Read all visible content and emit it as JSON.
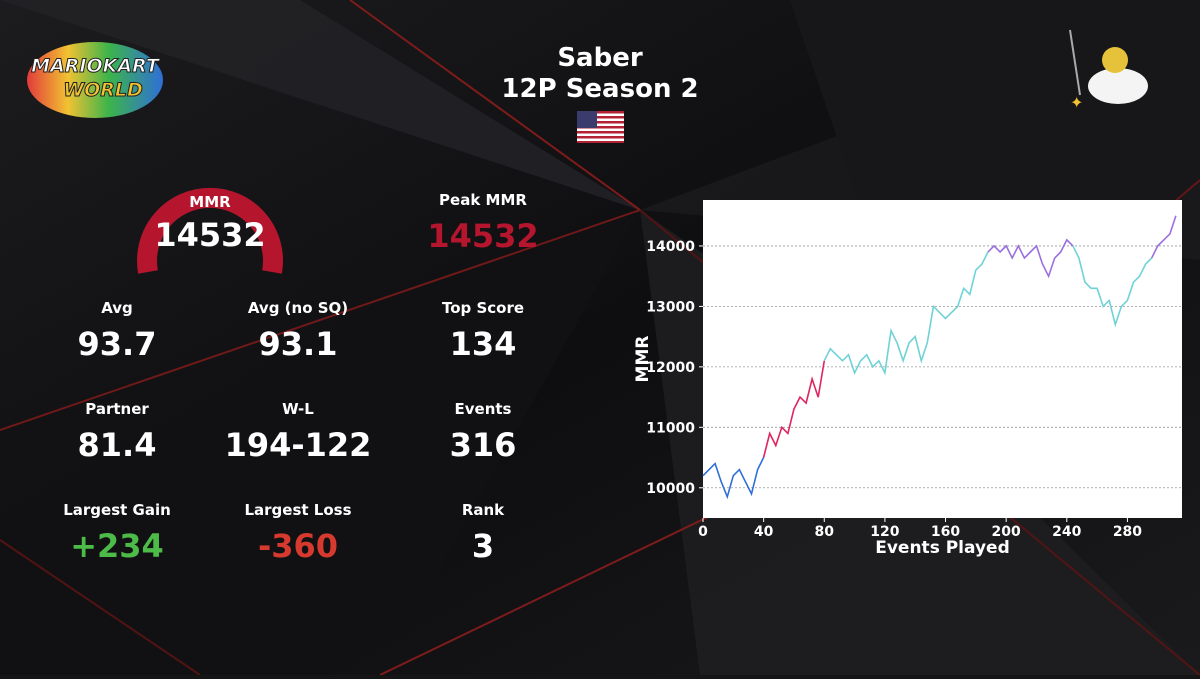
{
  "header": {
    "title": "Saber",
    "subtitle": "12P Season 2"
  },
  "logo": {
    "line1": "MARIOKART",
    "line2": "WORLD"
  },
  "gauge": {
    "label": "MMR",
    "value": "14532"
  },
  "stats": [
    {
      "label": "Peak MMR",
      "value": "14532",
      "color": "#b5162e"
    },
    {
      "label": "Avg",
      "value": "93.7"
    },
    {
      "label": "Avg (no SQ)",
      "value": "93.1"
    },
    {
      "label": "Top Score",
      "value": "134"
    },
    {
      "label": "Partner",
      "value": "81.4"
    },
    {
      "label": "W-L",
      "value": "194-122"
    },
    {
      "label": "Events",
      "value": "316"
    },
    {
      "label": "Largest Gain",
      "value": "+234",
      "color": "#4cbb47"
    },
    {
      "label": "Largest Loss",
      "value": "-360",
      "color": "#d63a2f"
    },
    {
      "label": "Rank",
      "value": "3"
    }
  ],
  "chart_data": {
    "type": "line",
    "xlabel": "Events Played",
    "ylabel": "MMR",
    "xlim": [
      0,
      316
    ],
    "ylim": [
      9500,
      14760
    ],
    "xticks": [
      0,
      40,
      80,
      120,
      160,
      200,
      240,
      280
    ],
    "yticks": [
      10000,
      11000,
      12000,
      13000,
      14000
    ],
    "grid": true,
    "x": [
      0,
      4,
      8,
      12,
      16,
      20,
      24,
      28,
      32,
      36,
      40,
      44,
      48,
      52,
      56,
      60,
      64,
      68,
      72,
      76,
      80,
      84,
      88,
      92,
      96,
      100,
      104,
      108,
      112,
      116,
      120,
      124,
      128,
      132,
      136,
      140,
      144,
      148,
      152,
      156,
      160,
      164,
      168,
      172,
      176,
      180,
      184,
      188,
      192,
      196,
      200,
      204,
      208,
      212,
      216,
      220,
      224,
      228,
      232,
      236,
      240,
      244,
      248,
      252,
      256,
      260,
      264,
      268,
      272,
      276,
      280,
      284,
      288,
      292,
      296,
      300,
      304,
      308,
      312
    ],
    "series": [
      {
        "color": "#2f6fd8",
        "values": [
          10200,
          10300,
          10400,
          10100,
          9850,
          10200,
          10300,
          10100,
          9900,
          10300,
          10500,
          null,
          null,
          null,
          null,
          null,
          null,
          null,
          null,
          null,
          null,
          null,
          null,
          null,
          null,
          null,
          null,
          null,
          null,
          null,
          null,
          null,
          null,
          null,
          null,
          null,
          null,
          null,
          null,
          null,
          null,
          null,
          null,
          null,
          null,
          null,
          null,
          null,
          null,
          null,
          null,
          null,
          null,
          null,
          null,
          null,
          null,
          null,
          null,
          null,
          null,
          null,
          null,
          null,
          null,
          null,
          null,
          null,
          null,
          null,
          null,
          null,
          null,
          null,
          null,
          null,
          null,
          null,
          null
        ]
      },
      {
        "color": "#e0245e",
        "values": [
          null,
          null,
          null,
          null,
          null,
          null,
          null,
          null,
          null,
          null,
          10500,
          10900,
          10700,
          11000,
          10900,
          11300,
          11500,
          11400,
          11800,
          11500,
          12100,
          null,
          null,
          null,
          null,
          null,
          null,
          null,
          null,
          null,
          null,
          null,
          null,
          null,
          null,
          null,
          null,
          null,
          null,
          null,
          null,
          null,
          null,
          null,
          null,
          null,
          null,
          null,
          null,
          null,
          null,
          null,
          null,
          null,
          null,
          null,
          null,
          null,
          null,
          null,
          null,
          null,
          null,
          null,
          null,
          null,
          null,
          null,
          null,
          null,
          null,
          null,
          null,
          null,
          null,
          null,
          null,
          null,
          null
        ]
      },
      {
        "color": "#6fd2d6",
        "values": [
          null,
          null,
          null,
          null,
          null,
          null,
          null,
          null,
          null,
          null,
          null,
          null,
          null,
          null,
          null,
          null,
          null,
          null,
          null,
          null,
          12100,
          12300,
          12200,
          12100,
          12200,
          11900,
          12100,
          12200,
          12000,
          12100,
          11900,
          12600,
          12400,
          12100,
          12400,
          12500,
          12100,
          12400,
          13000,
          12900,
          12800,
          12900,
          13000,
          13300,
          13200,
          13600,
          13700,
          13900,
          null,
          null,
          null,
          null,
          null,
          null,
          null,
          null,
          null,
          null,
          null,
          null,
          null,
          14000,
          13800,
          13400,
          13300,
          13300,
          13000,
          13100,
          12700,
          13000,
          13100,
          13400,
          13500,
          13700,
          13800,
          null,
          null,
          null,
          null
        ]
      },
      {
        "color": "#9b6fe0",
        "values": [
          null,
          null,
          null,
          null,
          null,
          null,
          null,
          null,
          null,
          null,
          null,
          null,
          null,
          null,
          null,
          null,
          null,
          null,
          null,
          null,
          null,
          null,
          null,
          null,
          null,
          null,
          null,
          null,
          null,
          null,
          null,
          null,
          null,
          null,
          null,
          null,
          null,
          null,
          null,
          null,
          null,
          null,
          null,
          null,
          null,
          null,
          null,
          13900,
          14000,
          13900,
          14000,
          13800,
          14000,
          13800,
          13900,
          14000,
          13700,
          13500,
          13800,
          13900,
          14100,
          14000,
          null,
          null,
          null,
          null,
          null,
          null,
          null,
          null,
          null,
          null,
          null,
          null,
          13800,
          14000,
          14100,
          14200,
          14500
        ]
      }
    ]
  }
}
